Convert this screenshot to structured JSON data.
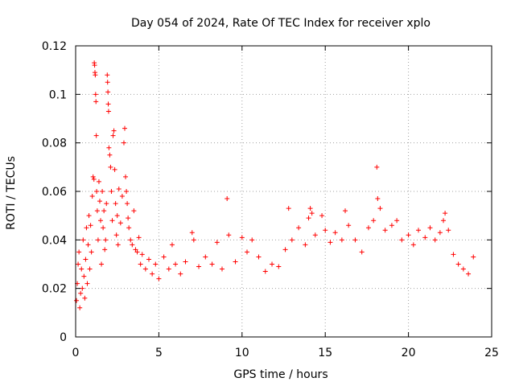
{
  "chart_data": {
    "type": "scatter",
    "title": "Day 054 of 2024, Rate Of TEC Index for receiver xplo",
    "xlabel": "GPS time / hours",
    "ylabel": "ROTI / TECUs",
    "xlim": [
      0,
      25
    ],
    "ylim": [
      0,
      0.12
    ],
    "xticks": [
      0,
      5,
      10,
      15,
      20,
      25
    ],
    "xtick_labels": [
      "0",
      "5",
      "10",
      "15",
      "20",
      "25"
    ],
    "yticks": [
      0,
      0.02,
      0.04,
      0.06,
      0.08,
      0.1,
      0.12
    ],
    "ytick_labels": [
      "0",
      "0.02",
      "0.04",
      "0.06",
      "0.08",
      "0.1",
      "0.12"
    ],
    "grid": true,
    "marker": "+",
    "series": [
      {
        "name": "ROTI",
        "color": "#ff0000",
        "points": [
          [
            0.05,
            0.015
          ],
          [
            0.1,
            0.022
          ],
          [
            0.15,
            0.03
          ],
          [
            0.2,
            0.035
          ],
          [
            0.25,
            0.012
          ],
          [
            0.3,
            0.018
          ],
          [
            0.35,
            0.028
          ],
          [
            0.4,
            0.02
          ],
          [
            0.45,
            0.04
          ],
          [
            0.5,
            0.025
          ],
          [
            0.55,
            0.016
          ],
          [
            0.6,
            0.032
          ],
          [
            0.65,
            0.045
          ],
          [
            0.7,
            0.022
          ],
          [
            0.75,
            0.038
          ],
          [
            0.8,
            0.05
          ],
          [
            0.85,
            0.028
          ],
          [
            0.9,
            0.046
          ],
          [
            0.95,
            0.035
          ],
          [
            1.0,
            0.058
          ],
          [
            1.05,
            0.066
          ],
          [
            1.1,
            0.065
          ],
          [
            1.12,
            0.113
          ],
          [
            1.14,
            0.112
          ],
          [
            1.16,
            0.109
          ],
          [
            1.18,
            0.108
          ],
          [
            1.2,
            0.1
          ],
          [
            1.22,
            0.097
          ],
          [
            1.24,
            0.083
          ],
          [
            1.26,
            0.06
          ],
          [
            1.3,
            0.052
          ],
          [
            1.35,
            0.04
          ],
          [
            1.4,
            0.064
          ],
          [
            1.45,
            0.056
          ],
          [
            1.5,
            0.048
          ],
          [
            1.55,
            0.03
          ],
          [
            1.6,
            0.06
          ],
          [
            1.65,
            0.045
          ],
          [
            1.7,
            0.052
          ],
          [
            1.75,
            0.036
          ],
          [
            1.8,
            0.04
          ],
          [
            1.85,
            0.055
          ],
          [
            1.9,
            0.108
          ],
          [
            1.92,
            0.105
          ],
          [
            1.94,
            0.101
          ],
          [
            1.96,
            0.096
          ],
          [
            1.98,
            0.093
          ],
          [
            2.0,
            0.078
          ],
          [
            2.05,
            0.075
          ],
          [
            2.1,
            0.07
          ],
          [
            2.15,
            0.06
          ],
          [
            2.2,
            0.048
          ],
          [
            2.25,
            0.083
          ],
          [
            2.3,
            0.085
          ],
          [
            2.35,
            0.069
          ],
          [
            2.4,
            0.055
          ],
          [
            2.45,
            0.042
          ],
          [
            2.5,
            0.05
          ],
          [
            2.55,
            0.038
          ],
          [
            2.6,
            0.061
          ],
          [
            2.7,
            0.047
          ],
          [
            2.8,
            0.058
          ],
          [
            2.9,
            0.08
          ],
          [
            2.95,
            0.086
          ],
          [
            3.0,
            0.066
          ],
          [
            3.05,
            0.06
          ],
          [
            3.1,
            0.055
          ],
          [
            3.15,
            0.049
          ],
          [
            3.2,
            0.045
          ],
          [
            3.3,
            0.04
          ],
          [
            3.4,
            0.038
          ],
          [
            3.5,
            0.052
          ],
          [
            3.6,
            0.036
          ],
          [
            3.7,
            0.035
          ],
          [
            3.8,
            0.041
          ],
          [
            3.9,
            0.03
          ],
          [
            4.0,
            0.034
          ],
          [
            4.2,
            0.028
          ],
          [
            4.4,
            0.032
          ],
          [
            4.6,
            0.026
          ],
          [
            4.8,
            0.03
          ],
          [
            5.0,
            0.024
          ],
          [
            5.3,
            0.033
          ],
          [
            5.6,
            0.028
          ],
          [
            5.8,
            0.038
          ],
          [
            6.0,
            0.03
          ],
          [
            6.3,
            0.026
          ],
          [
            6.6,
            0.031
          ],
          [
            7.0,
            0.043
          ],
          [
            7.1,
            0.04
          ],
          [
            7.4,
            0.029
          ],
          [
            7.8,
            0.033
          ],
          [
            8.2,
            0.03
          ],
          [
            8.5,
            0.039
          ],
          [
            8.8,
            0.028
          ],
          [
            9.1,
            0.057
          ],
          [
            9.2,
            0.042
          ],
          [
            9.6,
            0.031
          ],
          [
            10.0,
            0.041
          ],
          [
            10.3,
            0.035
          ],
          [
            10.6,
            0.04
          ],
          [
            11.0,
            0.033
          ],
          [
            11.4,
            0.027
          ],
          [
            11.8,
            0.03
          ],
          [
            12.2,
            0.029
          ],
          [
            12.6,
            0.036
          ],
          [
            12.8,
            0.053
          ],
          [
            13.0,
            0.04
          ],
          [
            13.4,
            0.045
          ],
          [
            13.8,
            0.038
          ],
          [
            14.0,
            0.049
          ],
          [
            14.1,
            0.053
          ],
          [
            14.2,
            0.051
          ],
          [
            14.4,
            0.042
          ],
          [
            14.8,
            0.05
          ],
          [
            15.0,
            0.044
          ],
          [
            15.3,
            0.039
          ],
          [
            15.6,
            0.043
          ],
          [
            16.0,
            0.04
          ],
          [
            16.2,
            0.052
          ],
          [
            16.4,
            0.046
          ],
          [
            16.8,
            0.04
          ],
          [
            17.2,
            0.035
          ],
          [
            17.6,
            0.045
          ],
          [
            17.9,
            0.048
          ],
          [
            18.1,
            0.07
          ],
          [
            18.15,
            0.057
          ],
          [
            18.3,
            0.053
          ],
          [
            18.6,
            0.044
          ],
          [
            19.0,
            0.046
          ],
          [
            19.3,
            0.048
          ],
          [
            19.6,
            0.04
          ],
          [
            20.0,
            0.042
          ],
          [
            20.3,
            0.038
          ],
          [
            20.6,
            0.044
          ],
          [
            21.0,
            0.041
          ],
          [
            21.3,
            0.045
          ],
          [
            21.6,
            0.04
          ],
          [
            21.9,
            0.043
          ],
          [
            22.1,
            0.048
          ],
          [
            22.2,
            0.051
          ],
          [
            22.4,
            0.044
          ],
          [
            22.7,
            0.034
          ],
          [
            23.0,
            0.03
          ],
          [
            23.3,
            0.028
          ],
          [
            23.6,
            0.026
          ],
          [
            23.9,
            0.033
          ]
        ]
      }
    ]
  }
}
